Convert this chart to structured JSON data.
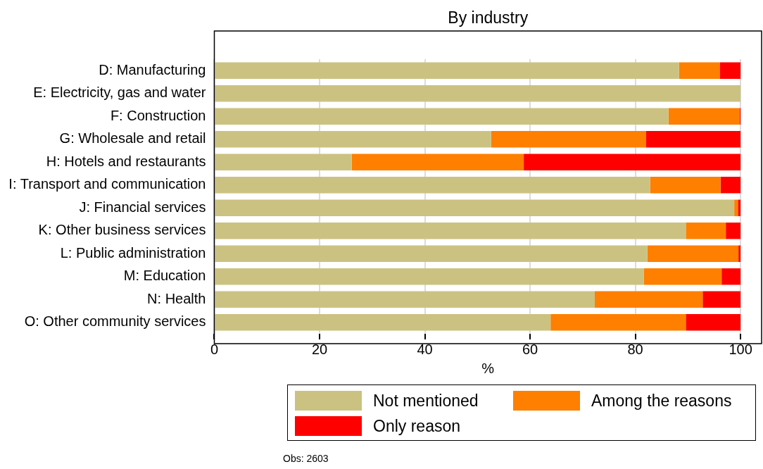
{
  "chart_data": {
    "type": "bar",
    "orientation": "horizontal",
    "stacked": true,
    "subtitle": "By industry",
    "xlabel": "%",
    "categories": [
      "D: Manufacturing",
      "E: Electricity, gas and water",
      "F: Construction",
      "G: Wholesale and retail",
      "H: Hotels and restaurants",
      "I: Transport and communication",
      "J: Financial services",
      "K: Other business services",
      "L: Public administration",
      "M: Education",
      "N: Health",
      "O: Other community services"
    ],
    "series": [
      {
        "name": "Not mentioned",
        "color": "#cbc282",
        "values": [
          88.3,
          100,
          86.3,
          52.6,
          26.1,
          82.8,
          98.8,
          89.6,
          82.3,
          81.6,
          72.3,
          63.9
        ]
      },
      {
        "name": "Among the reasons",
        "color": "#ff7f00",
        "values": [
          7.8,
          0,
          13.5,
          29.4,
          32.7,
          13.4,
          0.7,
          7.6,
          17.3,
          14.8,
          20.5,
          25.7
        ]
      },
      {
        "name": "Only reason",
        "color": "#ff0000",
        "values": [
          3.9,
          0,
          0.2,
          18.0,
          41.2,
          3.8,
          0.5,
          2.8,
          0.4,
          3.6,
          7.2,
          10.4
        ]
      }
    ],
    "xlim": [
      0,
      104
    ],
    "xticks": [
      0,
      20,
      40,
      60,
      80,
      100
    ],
    "grid": "x",
    "legend": "bottom",
    "annotations": [
      "Obs: 2603"
    ]
  }
}
